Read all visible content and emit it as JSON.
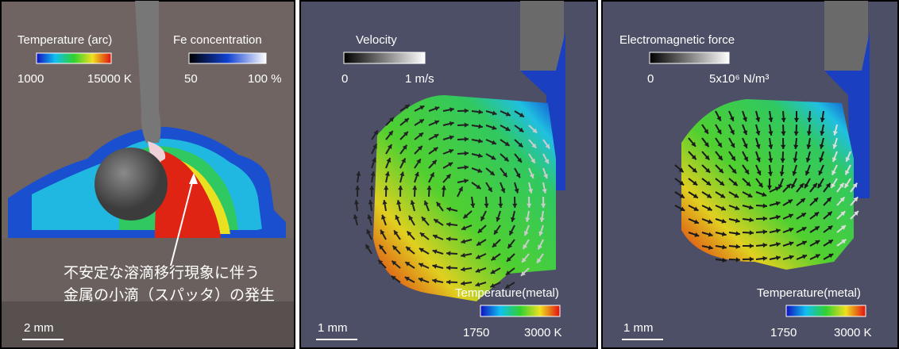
{
  "panels": [
    {
      "legends": [
        {
          "title": "Temperature (arc)",
          "min_label": "1000",
          "max_label": "15000 K"
        },
        {
          "title": "Fe concentration",
          "min_label": "50",
          "max_label": "100 %"
        }
      ],
      "annotation": [
        "不安定な溶滴移行現象に伴う",
        "金属の小滴（スパッタ）の発生"
      ],
      "scale_bar": "2 mm"
    },
    {
      "legends": [
        {
          "title": "Velocity",
          "min_label": "0",
          "max_label": "1 m/s"
        },
        {
          "title": "Temperature(metal)",
          "min_label": "1750",
          "max_label": "3000 K"
        }
      ],
      "scale_bar": "1 mm"
    },
    {
      "legends": [
        {
          "title": "Electromagnetic force",
          "min_label": "0",
          "max_label": "5x10⁶ N/m³"
        },
        {
          "title": "Temperature(metal)",
          "min_label": "1750",
          "max_label": "3000 K"
        }
      ],
      "scale_bar": "1 mm"
    }
  ]
}
